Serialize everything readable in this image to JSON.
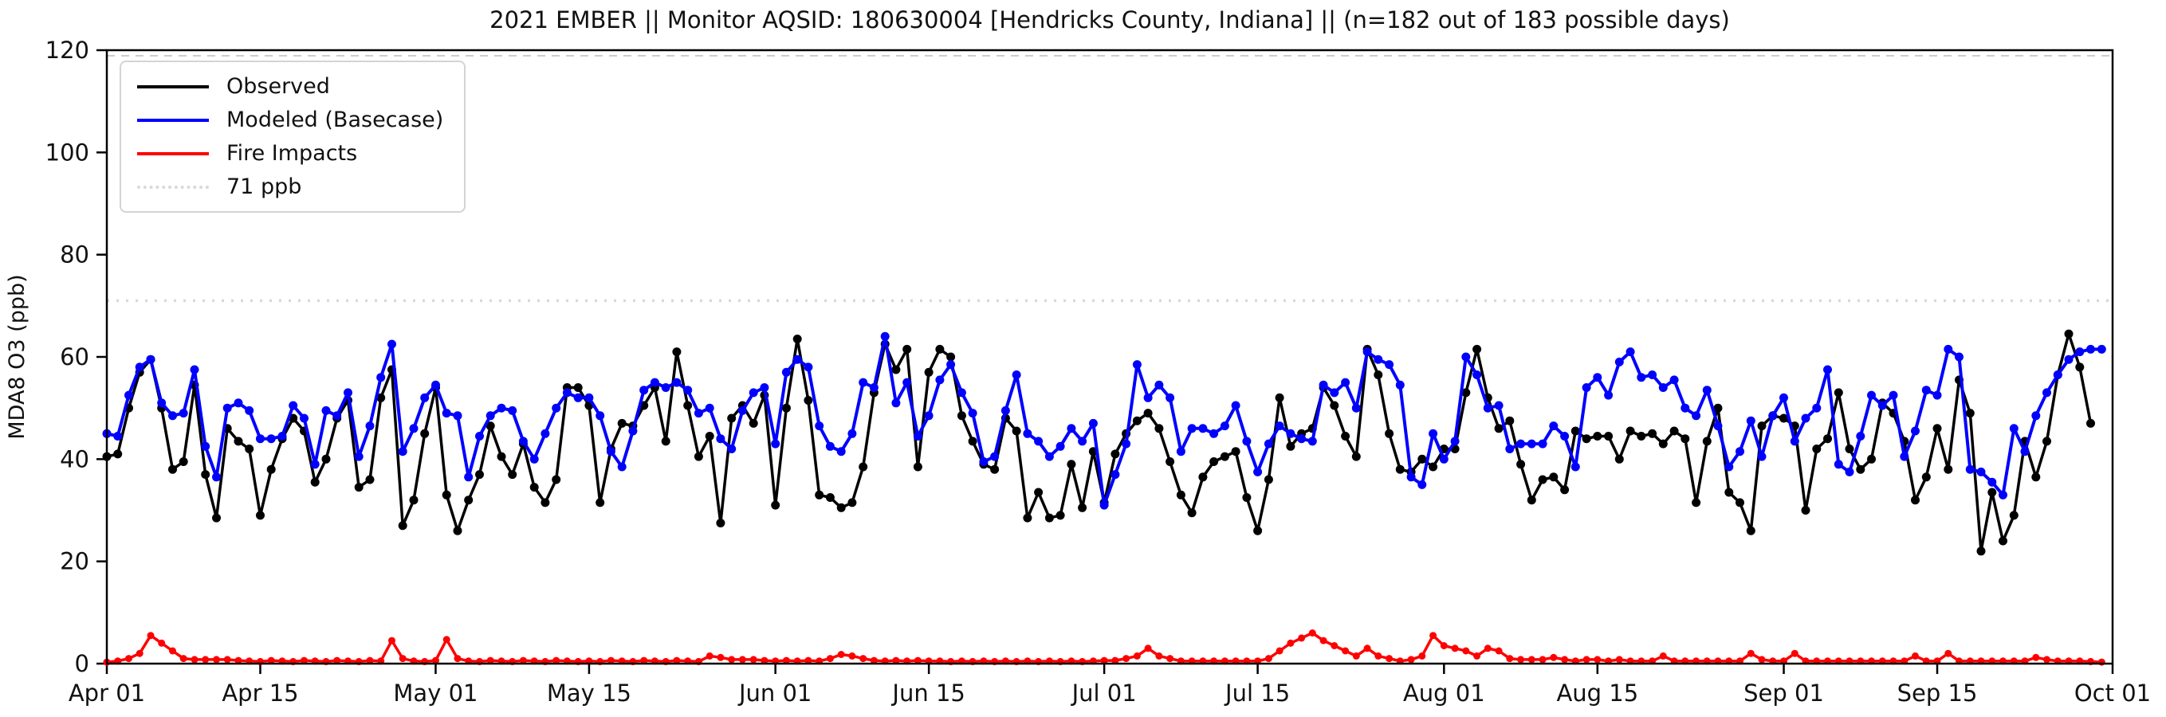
{
  "title": "2021 EMBER || Monitor AQSID: 180630004 [Hendricks County, Indiana] || (n=182 out of 183 possible days)",
  "chart_data": {
    "type": "line",
    "title": "2021 EMBER || Monitor AQSID: 180630004 [Hendricks County, Indiana] || (n=182 out of 183 possible days)",
    "xlabel": "",
    "ylabel": "MDA8 O3 (ppb)",
    "ylim": [
      0,
      120
    ],
    "yticks": [
      0,
      20,
      40,
      60,
      80,
      100,
      120
    ],
    "x_domain_days": [
      0,
      183
    ],
    "x_start_date": "Apr 01",
    "x_end_date": "Oct 01",
    "xtick_days": [
      0,
      14,
      30,
      44,
      61,
      75,
      91,
      105,
      122,
      136,
      153,
      167,
      183
    ],
    "xtick_labels": [
      "Apr 01",
      "Apr 15",
      "May 01",
      "May 15",
      "Jun 01",
      "Jun 15",
      "Jul 01",
      "Jul 15",
      "Aug 01",
      "Aug 15",
      "Sep 01",
      "Sep 15",
      "Oct 01"
    ],
    "grid": false,
    "legend_position": "upper-left",
    "threshold": {
      "label": "71 ppb",
      "value": 71,
      "color": "#d9d9d9",
      "style": "dotted"
    },
    "series": [
      {
        "name": "Observed",
        "color": "#000000",
        "line_width": 3.5,
        "marker": "circle",
        "marker_size": 5.5,
        "values": [
          40.5,
          41,
          50,
          57,
          59.5,
          50,
          38,
          39.5,
          54.5,
          37,
          28.5,
          46,
          43.5,
          42,
          29,
          38,
          44,
          48,
          45.5,
          35.5,
          40,
          48,
          51.5,
          34.5,
          36,
          52,
          57.5,
          27,
          32,
          45,
          54,
          33,
          26,
          32,
          37,
          46.5,
          40.5,
          37,
          43,
          34.5,
          31.5,
          36,
          54,
          54,
          50.5,
          31.5,
          42,
          47,
          46.5,
          50.5,
          54,
          43.5,
          61,
          50.5,
          40.5,
          44.5,
          27.5,
          48,
          50.5,
          47,
          52.5,
          31,
          50,
          63.5,
          51.5,
          33,
          32.5,
          30.5,
          31.5,
          38.5,
          53,
          62.5,
          57.5,
          61.5,
          38.5,
          57,
          61.5,
          60,
          48.5,
          43.5,
          39,
          38,
          48,
          45.5,
          28.5,
          33.5,
          28.5,
          29,
          39,
          30.5,
          41.5,
          31.5,
          41,
          45,
          47.5,
          49,
          46,
          39.5,
          33,
          29.5,
          36.5,
          39.5,
          40.5,
          41.5,
          32.5,
          26,
          36,
          52,
          42.5,
          45,
          46,
          54,
          50.5,
          44.5,
          40.5,
          61.5,
          56.5,
          45,
          38,
          37.5,
          40,
          38.5,
          42,
          42,
          53,
          61.5,
          52,
          46,
          47.5,
          39,
          32,
          36,
          36.5,
          34,
          45.5,
          44,
          44.5,
          44.5,
          40,
          45.5,
          44.5,
          45,
          43,
          45.5,
          44,
          31.5,
          43.5,
          50,
          33.5,
          31.5,
          26,
          46.5,
          48.5,
          48,
          46.5,
          30,
          42,
          44,
          53,
          42,
          38,
          40,
          51,
          49,
          43.5,
          32,
          36.5,
          46,
          38,
          55.5,
          49,
          22,
          33.5,
          24,
          29,
          43.5,
          36.5,
          43.5,
          56.5,
          64.5,
          58,
          47,
          null
        ]
      },
      {
        "name": "Modeled (Basecase)",
        "color": "#0000ff",
        "line_width": 4,
        "marker": "circle",
        "marker_size": 5.5,
        "values": [
          45,
          44.5,
          52.5,
          58,
          59.5,
          51,
          48.5,
          49,
          57.5,
          42.5,
          36.5,
          50,
          51,
          49.5,
          44,
          44,
          44.5,
          50.5,
          48,
          39,
          49.5,
          48.5,
          53,
          40.5,
          46.5,
          56,
          62.5,
          41.5,
          46,
          52,
          54.5,
          49,
          48.5,
          36.5,
          44.5,
          48.5,
          50,
          49.5,
          43.5,
          40,
          45,
          50,
          53,
          52,
          52,
          48.5,
          41.5,
          38.5,
          45.5,
          53.5,
          55,
          54,
          55,
          53.5,
          49,
          50,
          44,
          42,
          49.5,
          53,
          54,
          43,
          57,
          59.5,
          58,
          46.5,
          42.5,
          41.5,
          45,
          55,
          54,
          64,
          51,
          55,
          44.5,
          48.5,
          55.5,
          58.5,
          53,
          49,
          39.5,
          40.5,
          49.5,
          56.5,
          45,
          43.5,
          40.5,
          42.5,
          46,
          43.5,
          47,
          31,
          37,
          43,
          58.5,
          52,
          54.5,
          52,
          41.5,
          46,
          46,
          45,
          46.5,
          50.5,
          43.5,
          37.5,
          43,
          46.5,
          45,
          44,
          43.5,
          54.5,
          53,
          55,
          50,
          61,
          59.5,
          58.5,
          54.5,
          36.5,
          35,
          45,
          40,
          43.5,
          60,
          56.5,
          50,
          50.5,
          42,
          43,
          43,
          43,
          46.5,
          44.5,
          38.5,
          54,
          56,
          52.5,
          59,
          61,
          56,
          56.5,
          54,
          55.5,
          50,
          48.5,
          53.5,
          46.5,
          38.5,
          41.5,
          47.5,
          40.5,
          48.5,
          52,
          43.5,
          48,
          50,
          57.5,
          39,
          37.5,
          44.5,
          52.5,
          50.5,
          52.5,
          40.5,
          45.5,
          53.5,
          52.5,
          61.5,
          60,
          38,
          37.5,
          35.5,
          33,
          46,
          41.5,
          48.5,
          53,
          56.5,
          59.5,
          61,
          61.5,
          61.5
        ]
      },
      {
        "name": "Fire Impacts",
        "color": "#ff0000",
        "line_width": 3.5,
        "marker": "circle",
        "marker_size": 4.5,
        "values": [
          0.3,
          0.5,
          1,
          2,
          5.5,
          4,
          2.5,
          1,
          0.8,
          0.8,
          0.8,
          0.8,
          0.6,
          0.5,
          0.4,
          0.6,
          0.5,
          0.4,
          0.6,
          0.5,
          0.4,
          0.6,
          0.5,
          0.4,
          0.6,
          0.5,
          4.5,
          1,
          0.5,
          0.4,
          0.6,
          4.7,
          1,
          0.5,
          0.4,
          0.6,
          0.5,
          0.4,
          0.6,
          0.5,
          0.4,
          0.6,
          0.5,
          0.4,
          0.5,
          0.4,
          0.6,
          0.5,
          0.4,
          0.6,
          0.5,
          0.4,
          0.6,
          0.5,
          0.4,
          1.5,
          1.2,
          0.8,
          0.8,
          0.8,
          0.6,
          0.5,
          0.6,
          0.5,
          0.6,
          0.5,
          1,
          1.8,
          1.5,
          1,
          0.6,
          0.5,
          0.6,
          0.5,
          0.6,
          0.5,
          0.5,
          0.4,
          0.5,
          0.4,
          0.5,
          0.4,
          0.5,
          0.4,
          0.5,
          0.4,
          0.5,
          0.4,
          0.5,
          0.4,
          0.5,
          0.6,
          0.6,
          1,
          1.5,
          3,
          1.5,
          1,
          0.5,
          0.5,
          0.5,
          0.5,
          0.5,
          0.5,
          0.5,
          0.5,
          1,
          2.5,
          4,
          5,
          6,
          4.5,
          3.5,
          2.5,
          1.5,
          3,
          1.5,
          1,
          0.5,
          0.8,
          1.5,
          5.5,
          3.5,
          3,
          2.5,
          1.5,
          3,
          2.5,
          1,
          0.8,
          0.8,
          0.8,
          1.2,
          0.8,
          0.5,
          0.8,
          0.8,
          0.5,
          0.8,
          0.5,
          0.5,
          0.5,
          1.5,
          0.5,
          0.5,
          0.5,
          0.5,
          0.5,
          0.5,
          0.5,
          2,
          0.8,
          0.5,
          0.5,
          2,
          0.5,
          0.5,
          0.5,
          0.5,
          0.5,
          0.5,
          0.5,
          0.5,
          0.5,
          0.5,
          1.5,
          0.5,
          0.5,
          2,
          0.5,
          0.5,
          0.5,
          0.5,
          0.5,
          0.5,
          0.5,
          1.2,
          0.8,
          0.5,
          0.5,
          0.5,
          0.4,
          0.3
        ]
      }
    ]
  },
  "legend": {
    "entries": [
      "Observed",
      "Modeled (Basecase)",
      "Fire Impacts",
      "71 ppb"
    ]
  }
}
